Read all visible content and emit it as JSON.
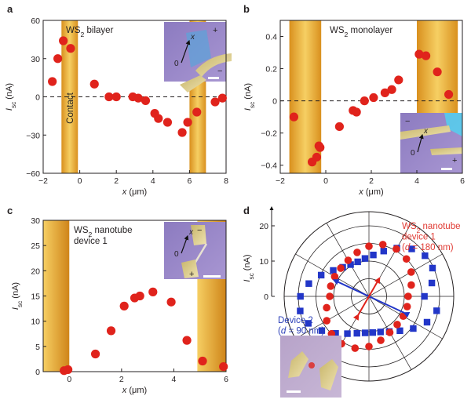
{
  "colors": {
    "red_marker": "#e0231c",
    "blue_marker": "#2236c8",
    "contact_gold": "#f2c24d",
    "contact_edge": "#d08a1c",
    "inset_lavender": "#9a86c8"
  },
  "chart_data": [
    {
      "panel": "a",
      "type": "scatter",
      "title": "WS2 bilayer",
      "xlabel": "x (μm)",
      "ylabel": "Isc (nA)",
      "xlim": [
        -2,
        8
      ],
      "ylim": [
        -60,
        60
      ],
      "xticks": [
        -2,
        0,
        2,
        4,
        6,
        8
      ],
      "yticks": [
        -60,
        -30,
        0,
        30,
        60
      ],
      "xtick_labels": [
        "−2",
        "0",
        "2",
        "4",
        "6",
        "8"
      ],
      "ytick_labels": [
        "−60",
        "−30",
        "0",
        "30",
        "60"
      ],
      "contact_bands": [
        [
          -1.0,
          -0.1
        ],
        [
          6.0,
          6.9
        ]
      ],
      "contact_label": "Contact",
      "x": [
        -1.5,
        -1.2,
        -0.9,
        -0.5,
        0.8,
        1.6,
        2.0,
        2.9,
        3.2,
        3.6,
        4.1,
        4.3,
        4.8,
        5.6,
        5.9,
        6.4,
        7.4,
        7.8
      ],
      "y": [
        12,
        30,
        44,
        38,
        10,
        0,
        0,
        0,
        -1,
        -3,
        -13,
        -17,
        -20,
        -28,
        -20,
        -12,
        -4,
        -1
      ],
      "marker": "circle",
      "color": "#e0231c",
      "zero_line": "dashed",
      "inset": {
        "axis_x": "x",
        "axis_origin": "0",
        "polarity_top": "+",
        "polarity_bottom": "−"
      }
    },
    {
      "panel": "b",
      "type": "scatter",
      "title": "WS2 monolayer",
      "xlabel": "x (μm)",
      "ylabel": "Isc (nA)",
      "xlim": [
        -2,
        6
      ],
      "ylim": [
        -0.45,
        0.5
      ],
      "xticks": [
        -2,
        0,
        2,
        4,
        6
      ],
      "yticks": [
        -0.4,
        -0.2,
        0,
        0.2,
        0.4
      ],
      "xtick_labels": [
        "−2",
        "0",
        "2",
        "4",
        "6"
      ],
      "ytick_labels": [
        "−0.4",
        "−0.2",
        "0",
        "0.2",
        "0.4"
      ],
      "contact_bands": [
        [
          -1.6,
          -0.2
        ],
        [
          4.0,
          5.8
        ]
      ],
      "x": [
        -1.4,
        -0.6,
        -0.4,
        -0.3,
        -0.25,
        0.6,
        1.2,
        1.35,
        1.7,
        2.1,
        2.6,
        2.9,
        3.2,
        4.1,
        4.4,
        4.9,
        5.4
      ],
      "y": [
        -0.1,
        -0.38,
        -0.35,
        -0.28,
        -0.29,
        -0.16,
        -0.06,
        -0.07,
        0.0,
        0.02,
        0.05,
        0.07,
        0.13,
        0.29,
        0.28,
        0.18,
        0.04
      ],
      "marker": "circle",
      "color": "#e0231c",
      "zero_line": "dashed",
      "inset": {
        "axis_x": "x",
        "axis_origin": "0",
        "polarity_top": "−",
        "polarity_bottom": "+"
      }
    },
    {
      "panel": "c",
      "type": "scatter",
      "title": "WS2 nanotube device 1",
      "title_lines": [
        "WS2 nanotube",
        "device 1"
      ],
      "xlabel": "x (μm)",
      "ylabel": "Isc (nA)",
      "xlim": [
        -1,
        6
      ],
      "ylim": [
        0,
        30
      ],
      "xticks": [
        0,
        2,
        4,
        6
      ],
      "yticks": [
        0,
        5,
        10,
        15,
        20,
        25,
        30
      ],
      "xtick_labels": [
        "0",
        "2",
        "4",
        "6"
      ],
      "ytick_labels": [
        "0",
        "5",
        "10",
        "15",
        "20",
        "25",
        "30"
      ],
      "contact_bands": [
        [
          -1.0,
          0.0
        ],
        [
          4.9,
          6.0
        ]
      ],
      "x": [
        -0.2,
        -0.05,
        1.0,
        1.6,
        2.1,
        2.5,
        2.7,
        3.2,
        3.9,
        4.5,
        5.1,
        5.9
      ],
      "y": [
        0.2,
        0.4,
        3.5,
        8.1,
        13.0,
        14.6,
        15.0,
        15.8,
        13.8,
        6.2,
        2.1,
        1.0
      ],
      "marker": "circle",
      "color": "#e0231c",
      "inset": {
        "axis_x": "x",
        "axis_origin": "0",
        "polarity_top": "−",
        "polarity_bottom": "+"
      }
    },
    {
      "panel": "d",
      "type": "polar",
      "ylabel": "Isc (nA)",
      "rticks": [
        0,
        10,
        20
      ],
      "rtick_labels": [
        "0",
        "10",
        "20"
      ],
      "rmax": 24,
      "series": [
        {
          "name": "WS2 nanotube device 1 (d = 180 nm)",
          "label_lines": [
            "WS2 nanotube",
            "device 1",
            "(d = 180 nm)"
          ],
          "marker": "circle",
          "color": "#e0231c",
          "angles_deg": [
            0,
            15,
            30,
            45,
            60,
            75,
            90,
            105,
            120,
            135,
            150,
            165,
            180,
            195,
            210,
            225,
            240,
            255,
            270,
            285,
            300,
            315,
            330,
            345
          ],
          "r": [
            11.1,
            12.4,
            13.8,
            15.0,
            15.5,
            15.2,
            14.2,
            12.9,
            11.8,
            11.3,
            11.2,
            11.2,
            11.1,
            12.4,
            13.8,
            15.0,
            15.5,
            15.2,
            14.2,
            12.9,
            11.8,
            11.3,
            11.2,
            11.2
          ],
          "vector": {
            "angle_deg": 60,
            "r": 6
          }
        },
        {
          "name": "Device 2 (d = 90 nm)",
          "label_lines": [
            "Device 2",
            "(d = 90 nm)"
          ],
          "marker": "square",
          "color": "#2236c8",
          "angles_deg": [
            0,
            12,
            24,
            36,
            48,
            60,
            72,
            84,
            96,
            108,
            120,
            132,
            144,
            156,
            168,
            180,
            192,
            204,
            216,
            228,
            240,
            252,
            264,
            276,
            288,
            300,
            312,
            324,
            336,
            348
          ],
          "r": [
            15.7,
            18.2,
            19.7,
            19.6,
            18.1,
            15.8,
            13.5,
            11.8,
            10.8,
            10.3,
            10.4,
            11.1,
            12.5,
            14.8,
            17.4,
            19.4,
            19.9,
            18.8,
            16.5,
            14.1,
            12.2,
            11.0,
            10.4,
            10.3,
            10.6,
            11.5,
            13.1,
            15.5,
            18.0,
            19.6
          ],
          "vector": {
            "angle_deg": 155,
            "r": 11
          }
        }
      ]
    }
  ]
}
